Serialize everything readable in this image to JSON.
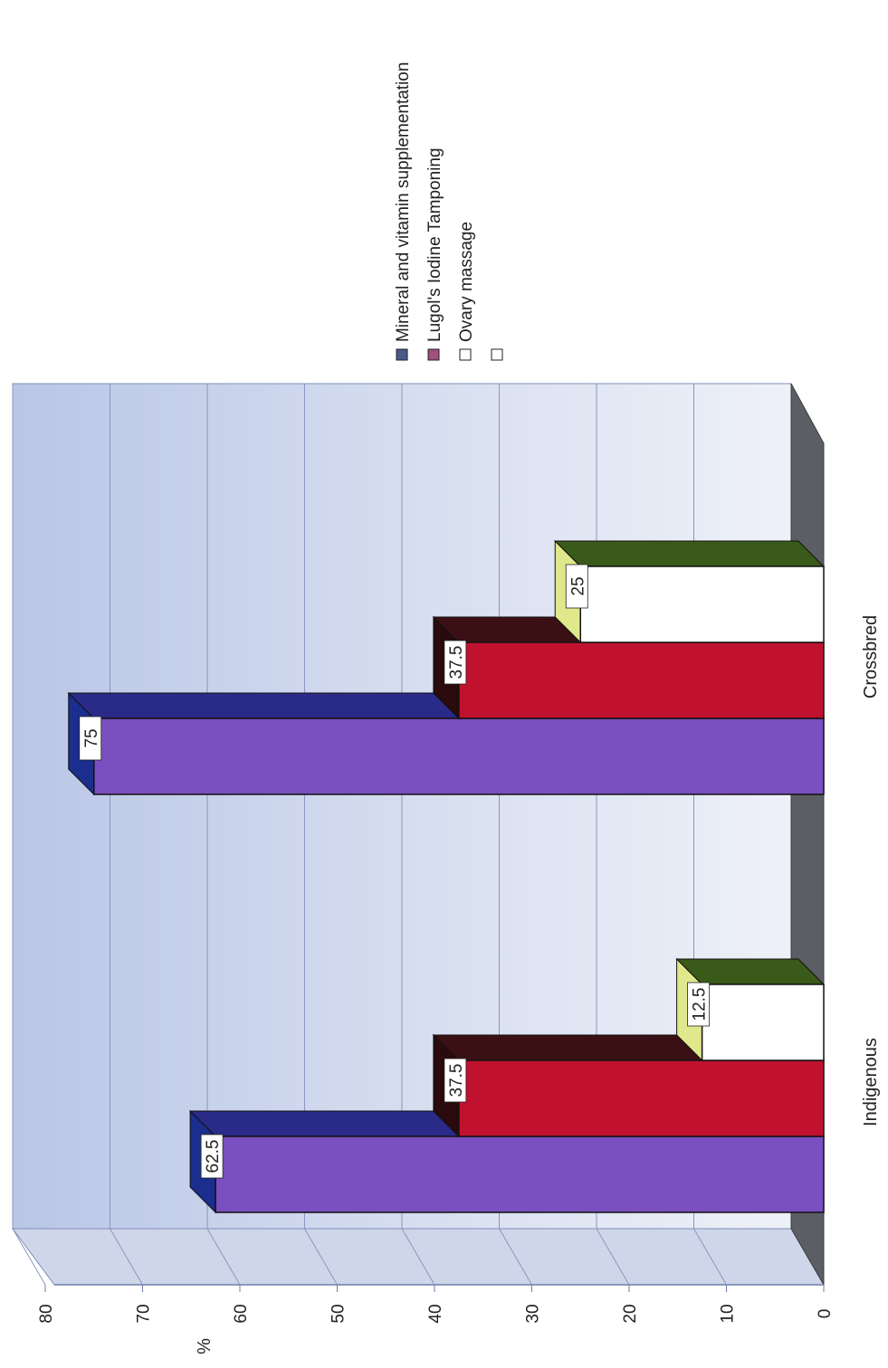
{
  "chart_data": {
    "type": "bar",
    "orientation": "rotated-90",
    "ylabel": "%",
    "ylim": [
      0,
      80
    ],
    "yticks": [
      "0",
      "10",
      "20",
      "30",
      "40",
      "50",
      "60",
      "70",
      "80"
    ],
    "categories": [
      "Indigenous",
      "Crossbred"
    ],
    "series": [
      {
        "name": "Mineral and vitamin supplementation",
        "values": [
          62.5,
          75
        ],
        "labels": [
          "62.5",
          "75"
        ],
        "color": "#7a4fc0"
      },
      {
        "name": "Lugol's Iodine Tamponing",
        "values": [
          37.5,
          37.5
        ],
        "labels": [
          "37.5",
          "37.5"
        ],
        "color": "#c0122e"
      },
      {
        "name": "Ovary massage",
        "values": [
          12.5,
          25
        ],
        "labels": [
          "12.5",
          "25"
        ],
        "color": "#ffffff"
      }
    ],
    "legend": {
      "position": "top-right",
      "entries": [
        "Mineral and vitamin supplementation",
        "Lugol's Iodine Tamponing",
        "Ovary massage",
        ""
      ]
    },
    "grid": true
  }
}
